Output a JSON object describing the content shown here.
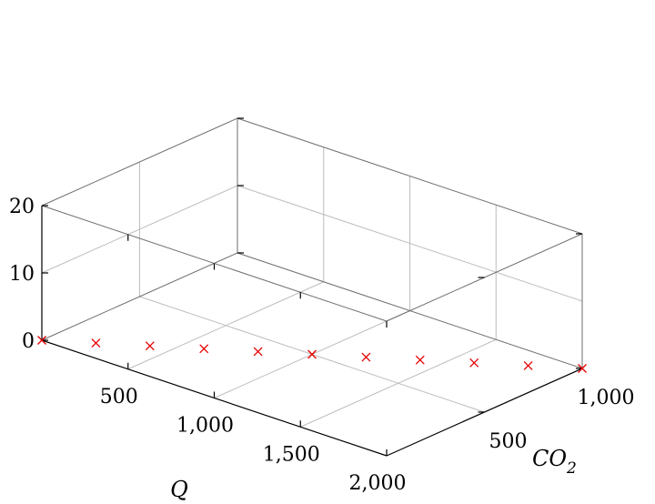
{
  "chart_data": {
    "type": "scatter",
    "title": "",
    "xlabel": "Q",
    "ylabel": "CO",
    "ylabel_subscript": "2",
    "zlabel": "",
    "xlim": [
      0,
      2000
    ],
    "ylim": [
      0,
      1000
    ],
    "zlim": [
      0,
      20
    ],
    "x_ticks": [
      500,
      1000,
      1500,
      2000
    ],
    "x_tick_labels": [
      "500",
      "1,000",
      "1,500",
      "2,000"
    ],
    "y_ticks": [
      500,
      1000
    ],
    "y_tick_labels": [
      "500",
      "1,000"
    ],
    "z_ticks": [
      0,
      10,
      20
    ],
    "z_tick_labels": [
      "0",
      "10",
      "20"
    ],
    "grid": true,
    "marker": "x",
    "marker_color": "#e60000",
    "series": [
      {
        "points": [
          {
            "x": 0,
            "y": 0,
            "z": 0
          },
          {
            "x": 200,
            "y": 100,
            "z": 0
          },
          {
            "x": 400,
            "y": 200,
            "z": 0
          },
          {
            "x": 600,
            "y": 300,
            "z": 0
          },
          {
            "x": 800,
            "y": 400,
            "z": 0
          },
          {
            "x": 1000,
            "y": 500,
            "z": 0
          },
          {
            "x": 1200,
            "y": 600,
            "z": 0
          },
          {
            "x": 1400,
            "y": 700,
            "z": 0
          },
          {
            "x": 1600,
            "y": 800,
            "z": 0
          },
          {
            "x": 1800,
            "y": 900,
            "z": 0
          },
          {
            "x": 2000,
            "y": 1000,
            "z": 0
          }
        ]
      }
    ]
  }
}
